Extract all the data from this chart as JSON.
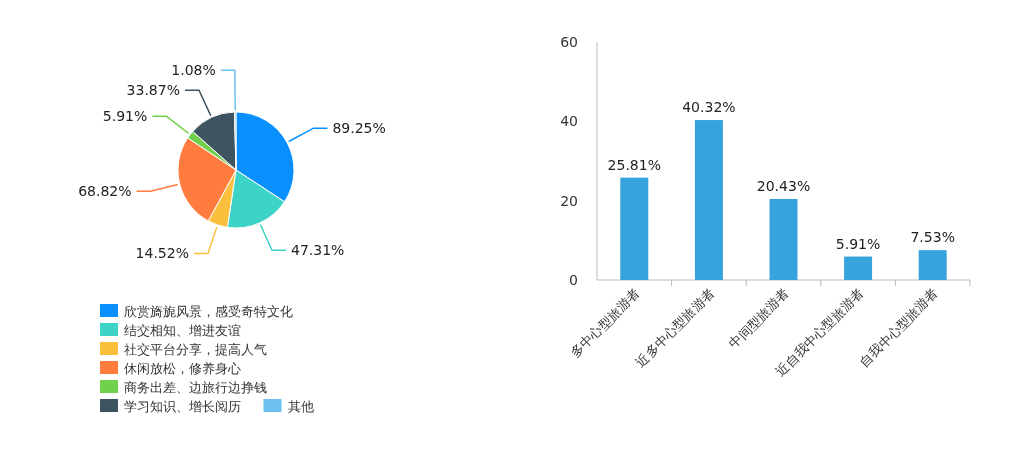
{
  "chart_data": [
    {
      "type": "pie",
      "categories": [
        "欣赏旖旎风景，感受奇特文化",
        "结交相知、增进友谊",
        "社交平台分享，提高人气",
        "休闲放松，修养身心",
        "商务出差、边旅行边挣钱",
        "学习知识、增长阅历",
        "其他"
      ],
      "values": [
        89.25,
        47.31,
        14.52,
        68.82,
        5.91,
        33.87,
        1.08
      ],
      "colors": [
        "#0a8fff",
        "#3dd3c6",
        "#fac03d",
        "#ff7b3e",
        "#72d14c",
        "#3e5461",
        "#6cc0f2"
      ],
      "value_labels": [
        "89.25%",
        "47.31%",
        "14.52%",
        "68.82%",
        "5.91%",
        "33.87%",
        "1.08%"
      ],
      "legend": "bottom"
    },
    {
      "type": "bar",
      "categories": [
        "多中心型旅游者",
        "近多中心型旅游者",
        "中间型旅游者",
        "近自我中心型旅游者",
        "自我中心型旅游者"
      ],
      "values": [
        25.81,
        40.32,
        20.43,
        5.91,
        7.53
      ],
      "value_labels": [
        "25.81%",
        "40.32%",
        "20.43%",
        "5.91%",
        "7.53%"
      ],
      "color": "#36a3dc",
      "ylim": [
        0,
        60
      ],
      "yticks": [
        0,
        20,
        40,
        60
      ]
    }
  ]
}
